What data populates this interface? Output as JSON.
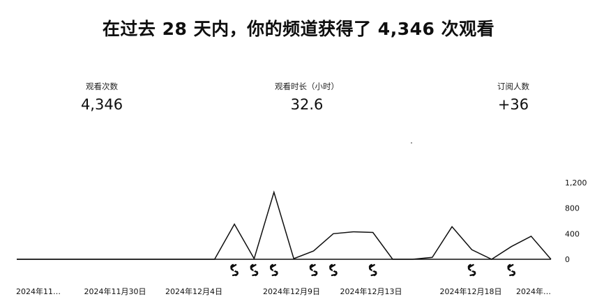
{
  "headline": "在过去 28 天内，你的频道获得了 4,346 次观看",
  "metrics": [
    {
      "label": "观看次数",
      "value": "4,346"
    },
    {
      "label": "观看时长（小时）",
      "value": "32.6"
    },
    {
      "label": "订阅人数",
      "value": "+36"
    }
  ],
  "chart_data": {
    "type": "line",
    "y_ticks": [
      "1,200",
      "800",
      "400",
      "0"
    ],
    "ylim": [
      0,
      1200
    ],
    "x_labels": [
      "2024年11…",
      "2024年11月30日",
      "2024年12月4日",
      "2024年12月9日",
      "2024年12月13日",
      "2024年12月18日",
      "2024年…"
    ],
    "series": [
      {
        "values": [
          0,
          0,
          0,
          0,
          0,
          0,
          0,
          0,
          0,
          0,
          0,
          550,
          10,
          1050,
          10,
          130,
          400,
          430,
          420,
          0,
          0,
          30,
          510,
          150,
          0,
          200,
          360,
          0
        ]
      }
    ],
    "shorts_markers_at_days": [
      11,
      12,
      13,
      15,
      16,
      18,
      23,
      25
    ],
    "line_color": "#0f0f0f"
  }
}
